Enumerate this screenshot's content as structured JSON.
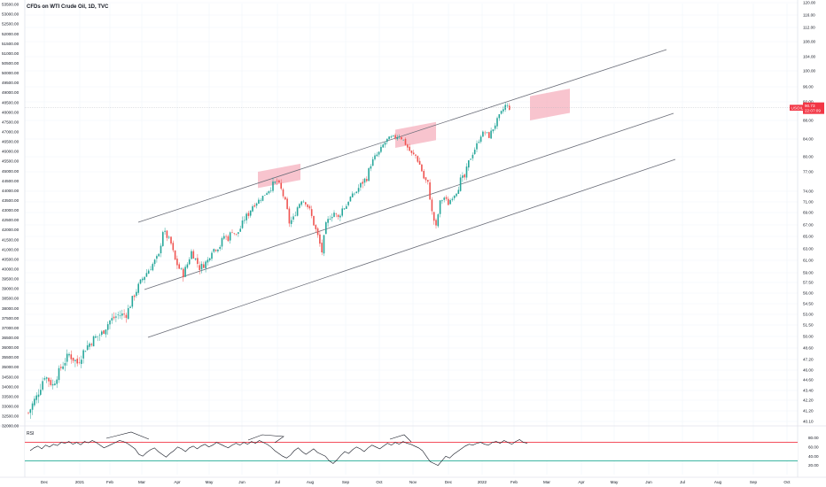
{
  "chart_title": "CFDs on WTI Crude Oil, 1D, TVC",
  "colors": {
    "up": "#26a69a",
    "down": "#ef5350",
    "band": "#f6b0bd",
    "rsi_upper": "#f23645",
    "rsi_lower": "#22ab94",
    "price_label": "#f23645"
  },
  "chart_data": {
    "type": "candlestick",
    "title": "CFDs on WTI Crude Oil, 1D, TVC",
    "x_ticks": [
      "Dec",
      "2021",
      "Feb",
      "Mar",
      "Apr",
      "May",
      "Jun",
      "Jul",
      "Aug",
      "Sep",
      "Oct",
      "Nov",
      "Dec",
      "2022",
      "Feb",
      "Mar",
      "Apr",
      "May",
      "Jun",
      "Jul",
      "Aug",
      "Sep",
      "Oct"
    ],
    "y_right_ticks": [
      "120.00",
      "116.00",
      "112.00",
      "108.00",
      "104.00",
      "100.00",
      "96.00",
      "92.00",
      "88.00",
      "84.00",
      "80.00",
      "77.00",
      "74.00",
      "71.00",
      "69.00",
      "67.00",
      "65.00",
      "63.00",
      "61.00",
      "59.00",
      "57.50",
      "56.00",
      "54.50",
      "53.00",
      "51.50",
      "50.00",
      "48.60",
      "47.20",
      "46.00",
      "44.60",
      "43.40",
      "42.20",
      "41.20",
      "40.10"
    ],
    "y_left_ticks": [
      "53500.00",
      "53000.00",
      "52500.00",
      "52000.00",
      "51500.00",
      "51000.00",
      "50500.00",
      "50000.00",
      "49500.00",
      "49000.00",
      "48500.00",
      "48000.00",
      "47500.00",
      "47000.00",
      "46500.00",
      "46000.00",
      "45500.00",
      "45000.00",
      "44500.00",
      "44000.00",
      "43500.00",
      "43000.00",
      "42500.00",
      "42000.00",
      "41500.00",
      "41000.00",
      "40500.00",
      "40000.00",
      "39500.00",
      "39000.00",
      "38500.00",
      "38000.00",
      "37500.00",
      "37000.00",
      "36500.00",
      "36000.00",
      "35500.00",
      "35000.00",
      "34500.00",
      "34000.00",
      "33500.00",
      "33000.00",
      "32500.00",
      "32000.00"
    ],
    "last_price": {
      "symbol": "USOIL",
      "value": "90.73",
      "countdown": "22:07:09"
    },
    "rsi": {
      "label": "RSI",
      "ticks": [
        "80.00",
        "60.00",
        "40.00",
        "20.00"
      ],
      "upper": 70,
      "lower": 30,
      "values": [
        52,
        58,
        62,
        56,
        64,
        60,
        66,
        63,
        70,
        68,
        72,
        66,
        70,
        65,
        72,
        69,
        74,
        70,
        64,
        58,
        62,
        66,
        70,
        74,
        72,
        68,
        62,
        56,
        44,
        40,
        48,
        54,
        58,
        50,
        44,
        38,
        46,
        52,
        60,
        56,
        50,
        58,
        62,
        56,
        62,
        66,
        60,
        64,
        70,
        66,
        62,
        58,
        64,
        68,
        64,
        70,
        66,
        72,
        68,
        74,
        70,
        66,
        60,
        52,
        46,
        40,
        36,
        42,
        52,
        58,
        50,
        44,
        50,
        56,
        48,
        44,
        40,
        30,
        24,
        32,
        42,
        50,
        46,
        54,
        60,
        56,
        50,
        58,
        64,
        60,
        56,
        62,
        68,
        64,
        70,
        66,
        72,
        68,
        66,
        62,
        58,
        52,
        40,
        28,
        24,
        20,
        30,
        40,
        36,
        44,
        50,
        56,
        62,
        66,
        64,
        68,
        70,
        66,
        64,
        70,
        72,
        68,
        74,
        70,
        66,
        72,
        76,
        70,
        68
      ],
      "trendline_labels": []
    },
    "channel": {
      "upper": {
        "from": {
          "date": "Mar 2021",
          "price": 67.0
        },
        "to": {
          "date": "Jul 2022",
          "price": 106.0
        }
      },
      "middle": {
        "from": {
          "date": "Mar 2021",
          "price": 56.5
        },
        "to": {
          "date": "Jul 2022",
          "price": 89.5
        }
      },
      "lower": {
        "from": {
          "date": "Mar 2021",
          "price": 50.0
        },
        "to": {
          "date": "Jul 2022",
          "price": 79.5
        }
      }
    },
    "highlight_zones": [
      {
        "label": "",
        "from_date": "Jun 2021",
        "to_date": "Jul 2021",
        "price_low": 74.5,
        "price_high": 77.0
      },
      {
        "label": "",
        "from_date": "Oct 2021",
        "to_date": "Nov 2021",
        "price_low": 82.0,
        "price_high": 86.0
      },
      {
        "label": "",
        "from_date": "Feb 2022",
        "to_date": "Mar 2022",
        "price_low": 88.0,
        "price_high": 93.5
      }
    ],
    "price_path": [
      [
        0,
        41.0
      ],
      [
        4,
        42.6
      ],
      [
        8,
        45.2
      ],
      [
        12,
        44.0
      ],
      [
        16,
        46.3
      ],
      [
        20,
        47.8
      ],
      [
        24,
        46.8
      ],
      [
        28,
        48.6
      ],
      [
        32,
        49.7
      ],
      [
        36,
        50.4
      ],
      [
        40,
        52.1
      ],
      [
        44,
        52.9
      ],
      [
        48,
        53.0
      ],
      [
        52,
        55.8
      ],
      [
        56,
        58.1
      ],
      [
        60,
        59.9
      ],
      [
        64,
        61.8
      ],
      [
        66,
        66.0
      ],
      [
        68,
        65.0
      ],
      [
        70,
        63.8
      ],
      [
        72,
        61.0
      ],
      [
        74,
        59.7
      ],
      [
        76,
        58.8
      ],
      [
        78,
        60.4
      ],
      [
        80,
        62.5
      ],
      [
        82,
        61.2
      ],
      [
        84,
        59.8
      ],
      [
        86,
        60.3
      ],
      [
        88,
        61.0
      ],
      [
        90,
        62.8
      ],
      [
        92,
        63.1
      ],
      [
        94,
        63.5
      ],
      [
        96,
        65.1
      ],
      [
        98,
        64.7
      ],
      [
        100,
        66.1
      ],
      [
        102,
        65.2
      ],
      [
        104,
        66.4
      ],
      [
        106,
        68.0
      ],
      [
        108,
        68.8
      ],
      [
        110,
        70.3
      ],
      [
        112,
        71.0
      ],
      [
        114,
        71.9
      ],
      [
        116,
        73.2
      ],
      [
        118,
        74.3
      ],
      [
        120,
        75.0
      ],
      [
        122,
        75.5
      ],
      [
        124,
        74.2
      ],
      [
        126,
        71.2
      ],
      [
        128,
        67.4
      ],
      [
        130,
        68.0
      ],
      [
        132,
        70.0
      ],
      [
        134,
        71.5
      ],
      [
        136,
        71.0
      ],
      [
        138,
        69.4
      ],
      [
        140,
        67.2
      ],
      [
        142,
        65.0
      ],
      [
        144,
        62.5
      ],
      [
        146,
        66.9
      ],
      [
        148,
        68.4
      ],
      [
        150,
        69.0
      ],
      [
        152,
        68.1
      ],
      [
        154,
        69.7
      ],
      [
        156,
        70.3
      ],
      [
        158,
        72.3
      ],
      [
        160,
        73.4
      ],
      [
        162,
        74.5
      ],
      [
        164,
        75.4
      ],
      [
        166,
        76.1
      ],
      [
        168,
        78.5
      ],
      [
        170,
        79.9
      ],
      [
        172,
        80.9
      ],
      [
        174,
        82.6
      ],
      [
        176,
        83.8
      ],
      [
        178,
        84.2
      ],
      [
        180,
        84.4
      ],
      [
        182,
        84.8
      ],
      [
        184,
        83.7
      ],
      [
        186,
        82.1
      ],
      [
        188,
        80.6
      ],
      [
        190,
        80.2
      ],
      [
        192,
        78.4
      ],
      [
        194,
        76.0
      ],
      [
        196,
        75.1
      ],
      [
        198,
        69.0
      ],
      [
        200,
        66.5
      ],
      [
        202,
        71.0
      ],
      [
        204,
        72.2
      ],
      [
        206,
        70.7
      ],
      [
        208,
        72.4
      ],
      [
        210,
        73.8
      ],
      [
        212,
        75.7
      ],
      [
        214,
        76.1
      ],
      [
        216,
        78.9
      ],
      [
        218,
        80.8
      ],
      [
        220,
        82.7
      ],
      [
        222,
        84.9
      ],
      [
        224,
        85.4
      ],
      [
        226,
        84.6
      ],
      [
        228,
        86.3
      ],
      [
        230,
        88.0
      ],
      [
        232,
        89.6
      ],
      [
        234,
        91.2
      ],
      [
        236,
        90.7
      ]
    ]
  }
}
